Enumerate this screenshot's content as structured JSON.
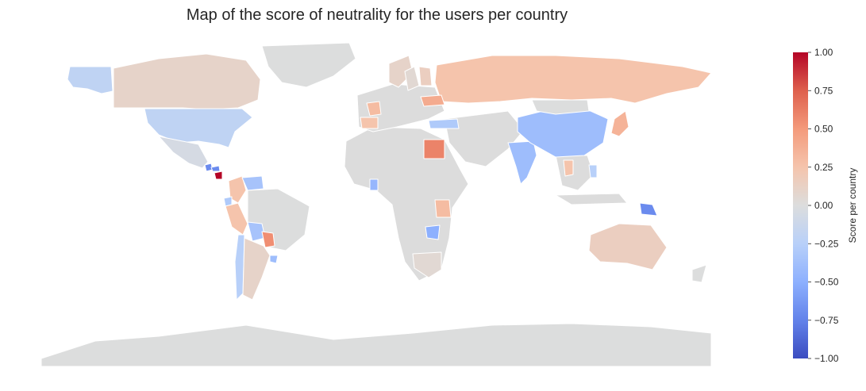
{
  "title": "Map of the score of neutrality for the users per country",
  "colorbar": {
    "label": "Score per country",
    "ticks": [
      "1.00",
      "0.75",
      "0.50",
      "0.25",
      "0.00",
      "−0.25",
      "−0.50",
      "−0.75",
      "−1.00"
    ],
    "range": [
      -1,
      1
    ],
    "colormap": "coolwarm",
    "stops": [
      "#3b4cc0",
      "#6282ea",
      "#8db0fe",
      "#b8d0f9",
      "#dcdddd",
      "#f5c4ac",
      "#f49a7b",
      "#de604d",
      "#b40426"
    ]
  },
  "map_style": {
    "no_data_color": "#dcdcdc",
    "border_color": "#ffffff"
  },
  "chart_data": {
    "type": "choropleth",
    "title": "Map of the score of neutrality for the users per country",
    "value_label": "Score per country",
    "range": [
      -1,
      1
    ],
    "regions": [
      {
        "name": "Alaska",
        "value": -0.2
      },
      {
        "name": "Canada",
        "value": 0.1
      },
      {
        "name": "United States",
        "value": -0.2
      },
      {
        "name": "Greenland",
        "value": 0.0
      },
      {
        "name": "Mexico",
        "value": -0.05
      },
      {
        "name": "Guatemala",
        "value": -0.7
      },
      {
        "name": "Honduras",
        "value": -0.7
      },
      {
        "name": "Nicaragua",
        "value": 1.0
      },
      {
        "name": "Colombia",
        "value": 0.25
      },
      {
        "name": "Venezuela",
        "value": -0.35
      },
      {
        "name": "Ecuador",
        "value": -0.3
      },
      {
        "name": "Peru",
        "value": 0.25
      },
      {
        "name": "Brazil",
        "value": 0.0
      },
      {
        "name": "Bolivia",
        "value": -0.35
      },
      {
        "name": "Paraguay",
        "value": 0.55
      },
      {
        "name": "Chile",
        "value": -0.25
      },
      {
        "name": "Argentina",
        "value": 0.1
      },
      {
        "name": "Uruguay",
        "value": -0.4
      },
      {
        "name": "Russia",
        "value": 0.25
      },
      {
        "name": "Ukraine",
        "value": 0.4
      },
      {
        "name": "France",
        "value": 0.3
      },
      {
        "name": "Spain",
        "value": 0.25
      },
      {
        "name": "Norway",
        "value": 0.1
      },
      {
        "name": "Sweden",
        "value": 0.05
      },
      {
        "name": "Finland",
        "value": 0.15
      },
      {
        "name": "Turkey",
        "value": -0.3
      },
      {
        "name": "Egypt",
        "value": 0.6
      },
      {
        "name": "Ghana",
        "value": -0.45
      },
      {
        "name": "Tanzania",
        "value": 0.3
      },
      {
        "name": "Zambia",
        "value": -0.5
      },
      {
        "name": "South Africa",
        "value": 0.05
      },
      {
        "name": "India",
        "value": -0.4
      },
      {
        "name": "China",
        "value": -0.4
      },
      {
        "name": "Mongolia",
        "value": 0.0
      },
      {
        "name": "Japan",
        "value": 0.35
      },
      {
        "name": "Thailand",
        "value": 0.25
      },
      {
        "name": "Philippines",
        "value": -0.25
      },
      {
        "name": "Papua New Guinea",
        "value": -0.7
      },
      {
        "name": "Australia",
        "value": 0.15
      },
      {
        "name": "New Zealand",
        "value": 0.0
      },
      {
        "name": "Antarctica",
        "value": 0.0
      }
    ]
  }
}
